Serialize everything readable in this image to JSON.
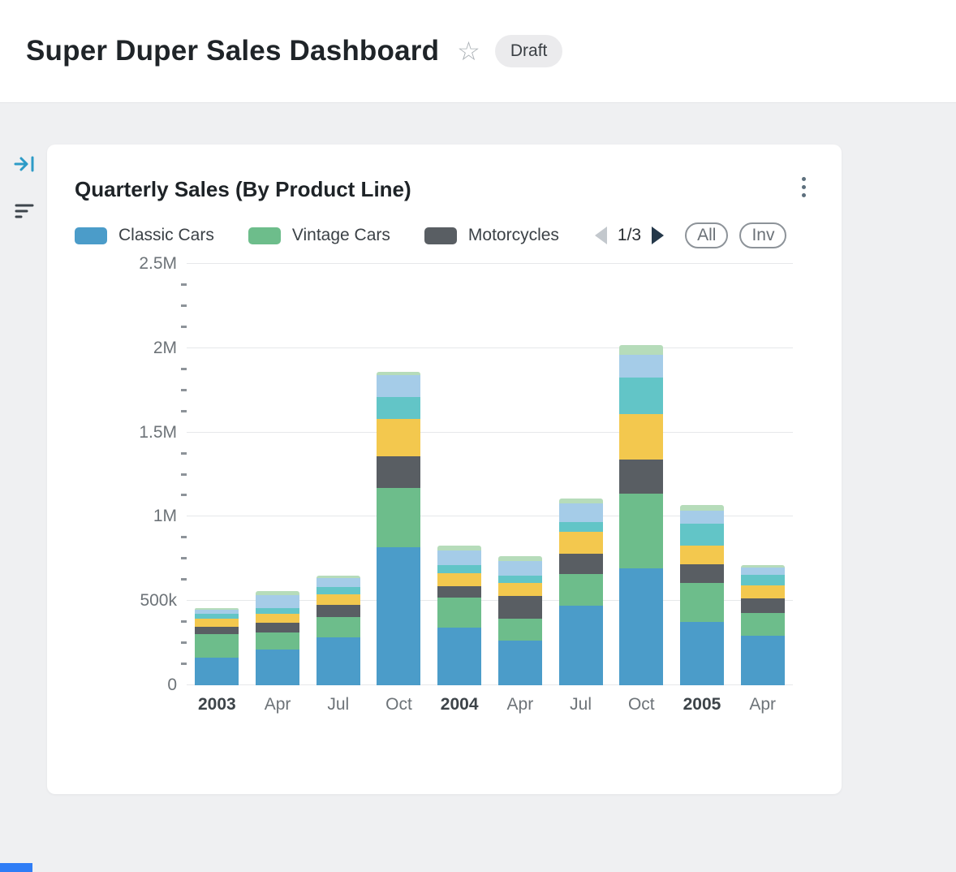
{
  "header": {
    "title": "Super Duper Sales Dashboard",
    "badge": "Draft"
  },
  "card": {
    "title": "Quarterly Sales (By Product Line)",
    "pager": {
      "label": "1/3"
    },
    "filter_buttons": {
      "all": "All",
      "inv": "Inv"
    }
  },
  "chart_data": {
    "type": "bar",
    "stacked": true,
    "title": "Quarterly Sales (By Product Line)",
    "categories": [
      "2003",
      "Apr",
      "Jul",
      "Oct",
      "2004",
      "Apr",
      "Jul",
      "Oct",
      "2005",
      "Apr"
    ],
    "bold_category_indices": [
      0,
      4,
      8
    ],
    "series": [
      {
        "name": "Classic Cars",
        "color": "#4b9cc9",
        "values": [
          165000,
          210000,
          285000,
          820000,
          340000,
          265000,
          470000,
          695000,
          375000,
          295000
        ]
      },
      {
        "name": "Vintage Cars",
        "color": "#6dbd8b",
        "values": [
          140000,
          105000,
          120000,
          350000,
          180000,
          130000,
          190000,
          440000,
          230000,
          135000
        ]
      },
      {
        "name": "Motorcycles",
        "color": "#595e63",
        "values": [
          40000,
          55000,
          70000,
          190000,
          70000,
          135000,
          120000,
          205000,
          115000,
          85000
        ]
      },
      {
        "name": "",
        "color": "#f3c84e",
        "values": [
          50000,
          55000,
          65000,
          220000,
          75000,
          75000,
          130000,
          270000,
          110000,
          80000
        ]
      },
      {
        "name": "",
        "color": "#62c5c7",
        "values": [
          30000,
          35000,
          45000,
          130000,
          50000,
          45000,
          60000,
          215000,
          130000,
          60000
        ]
      },
      {
        "name": "",
        "color": "#a5cce8",
        "values": [
          25000,
          75000,
          50000,
          130000,
          85000,
          85000,
          110000,
          135000,
          75000,
          45000
        ]
      },
      {
        "name": "",
        "color": "#b6dcba",
        "values": [
          10000,
          25000,
          15000,
          20000,
          30000,
          30000,
          30000,
          60000,
          35000,
          15000
        ]
      }
    ],
    "yticks": [
      {
        "label": "0",
        "value": 0
      },
      {
        "label": "500k",
        "value": 500000
      },
      {
        "label": "1M",
        "value": 1000000
      },
      {
        "label": "1.5M",
        "value": 1500000
      },
      {
        "label": "2M",
        "value": 2000000
      },
      {
        "label": "2.5M",
        "value": 2500000
      }
    ],
    "minor_tick_step": 125000,
    "ymax": 2500000,
    "legend_visible_series": 3,
    "legend_position": "top",
    "grid": true
  },
  "colors": {
    "page_bg": "#eff0f2",
    "card_bg": "#ffffff",
    "accent_strip": "#2f7df6"
  }
}
